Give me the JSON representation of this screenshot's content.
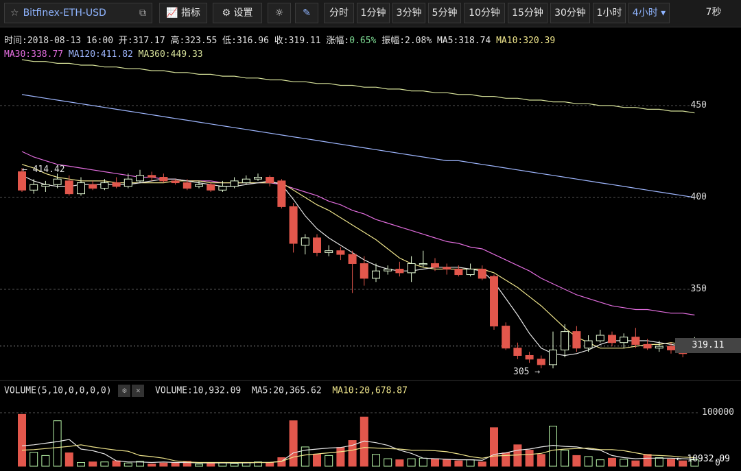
{
  "toolbar": {
    "symbol": "Bitfinex-ETH-USD",
    "indicators_label": "指标",
    "settings_label": "设置",
    "intervals": [
      "分时",
      "1分钟",
      "3分钟",
      "5分钟",
      "10分钟",
      "15分钟",
      "30分钟",
      "1小时",
      "4小时"
    ],
    "active_interval": "4小时",
    "countdown": "7秒"
  },
  "info": {
    "time": "时间:2018-08-13 16:00",
    "open": "开:317.17",
    "high": "高:323.55",
    "low": "低:316.96",
    "close": "收:319.11",
    "change_label": "涨幅:",
    "change_value": "0.65%",
    "amplitude": "振幅:2.08%",
    "ma5": "MA5:318.74",
    "ma10": "MA10:320.39",
    "ma30": "MA30:338.77",
    "ma120": "MA120:411.82",
    "ma360": "MA360:449.33"
  },
  "price_axis": {
    "labels": [
      "450",
      "400",
      "350"
    ],
    "current": "319.11"
  },
  "annotations": {
    "high_label": "← 414.42",
    "low_label": "305 →"
  },
  "volume": {
    "title": "VOLUME(5,10,0,0,0,0)",
    "volume": "VOLUME:10,932.09",
    "ma5": "MA5:20,365.62",
    "ma10": "MA10:20,678.87",
    "axis_top": "100000",
    "axis_zero": "0",
    "current": "← 10932.09"
  },
  "colors": {
    "up": "#e8ffd8",
    "down": "#e2574c",
    "ma5": "#e8e8e8",
    "ma10": "#f0e68c",
    "ma30": "#e46ee0",
    "ma120": "#9fb7ff",
    "ma360": "#d7e29a"
  },
  "chart_data": {
    "type": "candlestick",
    "candles": [
      [
        414,
        404,
        416,
        403
      ],
      [
        404,
        407,
        410,
        402
      ],
      [
        406,
        407,
        409,
        403
      ],
      [
        407,
        410,
        413,
        405
      ],
      [
        409,
        402,
        412,
        401
      ],
      [
        402,
        408,
        411,
        401
      ],
      [
        407,
        405,
        409,
        404
      ],
      [
        405,
        408,
        410,
        404
      ],
      [
        408,
        406,
        411,
        405
      ],
      [
        406,
        410,
        413,
        405
      ],
      [
        409,
        412,
        415,
        408
      ],
      [
        412,
        411,
        414,
        409
      ],
      [
        411,
        409,
        413,
        408
      ],
      [
        409,
        408,
        410,
        407
      ],
      [
        408,
        405,
        410,
        404
      ],
      [
        406,
        407,
        409,
        405
      ],
      [
        407,
        404,
        408,
        403
      ],
      [
        404,
        406,
        409,
        403
      ],
      [
        406,
        409,
        411,
        405
      ],
      [
        408,
        410,
        412,
        407
      ],
      [
        410,
        411,
        413,
        409
      ],
      [
        411,
        408,
        412,
        406
      ],
      [
        409,
        395,
        410,
        394
      ],
      [
        395,
        375,
        397,
        370
      ],
      [
        374,
        378,
        380,
        369
      ],
      [
        378,
        370,
        380,
        368
      ],
      [
        370,
        371,
        374,
        368
      ],
      [
        371,
        369,
        373,
        366
      ],
      [
        369,
        364,
        371,
        348
      ],
      [
        364,
        356,
        368,
        352
      ],
      [
        356,
        360,
        364,
        354
      ],
      [
        360,
        361,
        363,
        358
      ],
      [
        361,
        359,
        365,
        357
      ],
      [
        359,
        364,
        368,
        354
      ],
      [
        364,
        364,
        371,
        362
      ],
      [
        364,
        362,
        367,
        360
      ],
      [
        362,
        361,
        364,
        358
      ],
      [
        361,
        358,
        363,
        357
      ],
      [
        358,
        361,
        364,
        357
      ],
      [
        361,
        356,
        363,
        355
      ],
      [
        357,
        330,
        358,
        328
      ],
      [
        330,
        318,
        332,
        317
      ],
      [
        318,
        314,
        321,
        312
      ],
      [
        314,
        312,
        316,
        310
      ],
      [
        312,
        309,
        314,
        307
      ],
      [
        309,
        317,
        327,
        307
      ],
      [
        317,
        327,
        331,
        313
      ],
      [
        327,
        318,
        330,
        316
      ],
      [
        318,
        322,
        325,
        316
      ],
      [
        322,
        325,
        328,
        321
      ],
      [
        325,
        321,
        327,
        319
      ],
      [
        321,
        324,
        326,
        318
      ],
      [
        324,
        320,
        329,
        318
      ],
      [
        320,
        318,
        323,
        317
      ],
      [
        318,
        319,
        322,
        316
      ],
      [
        319,
        317,
        321,
        315
      ],
      [
        317,
        315,
        320,
        313
      ],
      [
        317,
        319,
        324,
        317
      ]
    ],
    "ma5": [
      412,
      409,
      407,
      406,
      406,
      407,
      407,
      407,
      407,
      407,
      408,
      409,
      410,
      410,
      409,
      408,
      407,
      406,
      406,
      407,
      408,
      409,
      407,
      399,
      390,
      383,
      378,
      374,
      370,
      366,
      363,
      361,
      360,
      360,
      361,
      362,
      362,
      362,
      361,
      360,
      354,
      345,
      336,
      326,
      318,
      315,
      314,
      315,
      317,
      320,
      322,
      322,
      322,
      322,
      321,
      320,
      319,
      319
    ],
    "ma10": [
      418,
      416,
      413,
      411,
      410,
      409,
      409,
      409,
      408,
      408,
      408,
      408,
      408,
      409,
      409,
      409,
      408,
      408,
      408,
      408,
      408,
      408,
      408,
      404,
      400,
      396,
      393,
      389,
      385,
      381,
      377,
      372,
      367,
      364,
      362,
      361,
      361,
      361,
      361,
      361,
      359,
      355,
      351,
      346,
      341,
      335,
      329,
      324,
      321,
      318,
      318,
      318,
      319,
      320,
      320,
      321,
      320,
      320
    ],
    "ma30": [
      425,
      422,
      420,
      418,
      417,
      416,
      415,
      414,
      413,
      412,
      411,
      411,
      410,
      410,
      409,
      409,
      409,
      408,
      408,
      408,
      408,
      408,
      407,
      405,
      403,
      401,
      398,
      396,
      393,
      391,
      388,
      386,
      384,
      382,
      380,
      378,
      376,
      375,
      373,
      372,
      369,
      366,
      363,
      360,
      356,
      353,
      350,
      347,
      345,
      343,
      341,
      340,
      339,
      339,
      338,
      337,
      337,
      336
    ],
    "ma120": [
      456,
      455,
      454,
      453,
      452,
      451,
      450,
      449,
      448,
      447,
      446,
      445,
      444,
      443,
      442,
      441,
      440,
      439,
      438,
      437,
      436,
      435,
      434,
      433,
      432,
      431,
      430,
      429,
      428,
      427,
      426,
      425,
      424,
      423,
      422,
      421,
      420,
      420,
      419,
      418,
      417,
      416,
      415,
      414,
      413,
      412,
      411,
      410,
      409,
      408,
      407,
      406,
      405,
      404,
      403,
      402,
      401,
      400
    ],
    "ma360": [
      475,
      474,
      474,
      473,
      473,
      472,
      472,
      471,
      471,
      470,
      470,
      469,
      469,
      468,
      468,
      467,
      467,
      466,
      466,
      465,
      465,
      464,
      464,
      463,
      463,
      462,
      462,
      461,
      461,
      460,
      460,
      459,
      459,
      458,
      458,
      457,
      457,
      456,
      456,
      455,
      455,
      454,
      454,
      453,
      453,
      452,
      452,
      451,
      451,
      450,
      450,
      449,
      449,
      448,
      448,
      447,
      447,
      446
    ],
    "volumes": [
      97,
      26,
      20,
      85,
      25,
      7,
      8,
      8,
      10,
      6,
      9,
      4,
      6,
      6,
      9,
      4,
      7,
      6,
      5,
      7,
      8,
      7,
      16,
      85,
      36,
      22,
      20,
      35,
      48,
      92,
      22,
      14,
      12,
      14,
      15,
      14,
      12,
      10,
      12,
      8,
      72,
      25,
      40,
      30,
      22,
      75,
      30,
      20,
      18,
      12,
      15,
      13,
      10,
      22,
      16,
      13,
      10,
      12
    ],
    "vol_ma5": [
      38,
      40,
      43,
      46,
      50,
      32,
      29,
      23,
      10,
      8,
      8,
      7,
      8,
      7,
      7,
      6,
      6,
      6,
      6,
      6,
      7,
      7,
      9,
      25,
      30,
      32,
      34,
      35,
      39,
      47,
      44,
      39,
      30,
      24,
      15,
      14,
      13,
      12,
      12,
      11,
      22,
      25,
      30,
      32,
      36,
      39,
      37,
      36,
      32,
      30,
      20,
      16,
      14,
      15,
      15,
      15,
      14,
      13
    ],
    "vol_ma10": [
      30,
      31,
      33,
      35,
      37,
      40,
      36,
      33,
      30,
      28,
      20,
      18,
      15,
      10,
      8,
      7,
      7,
      7,
      7,
      7,
      7,
      7,
      9,
      17,
      21,
      23,
      25,
      27,
      30,
      35,
      34,
      33,
      32,
      30,
      30,
      29,
      27,
      23,
      18,
      15,
      19,
      20,
      21,
      22,
      24,
      30,
      32,
      33,
      34,
      31,
      31,
      29,
      25,
      21,
      20,
      19,
      17,
      16
    ]
  }
}
